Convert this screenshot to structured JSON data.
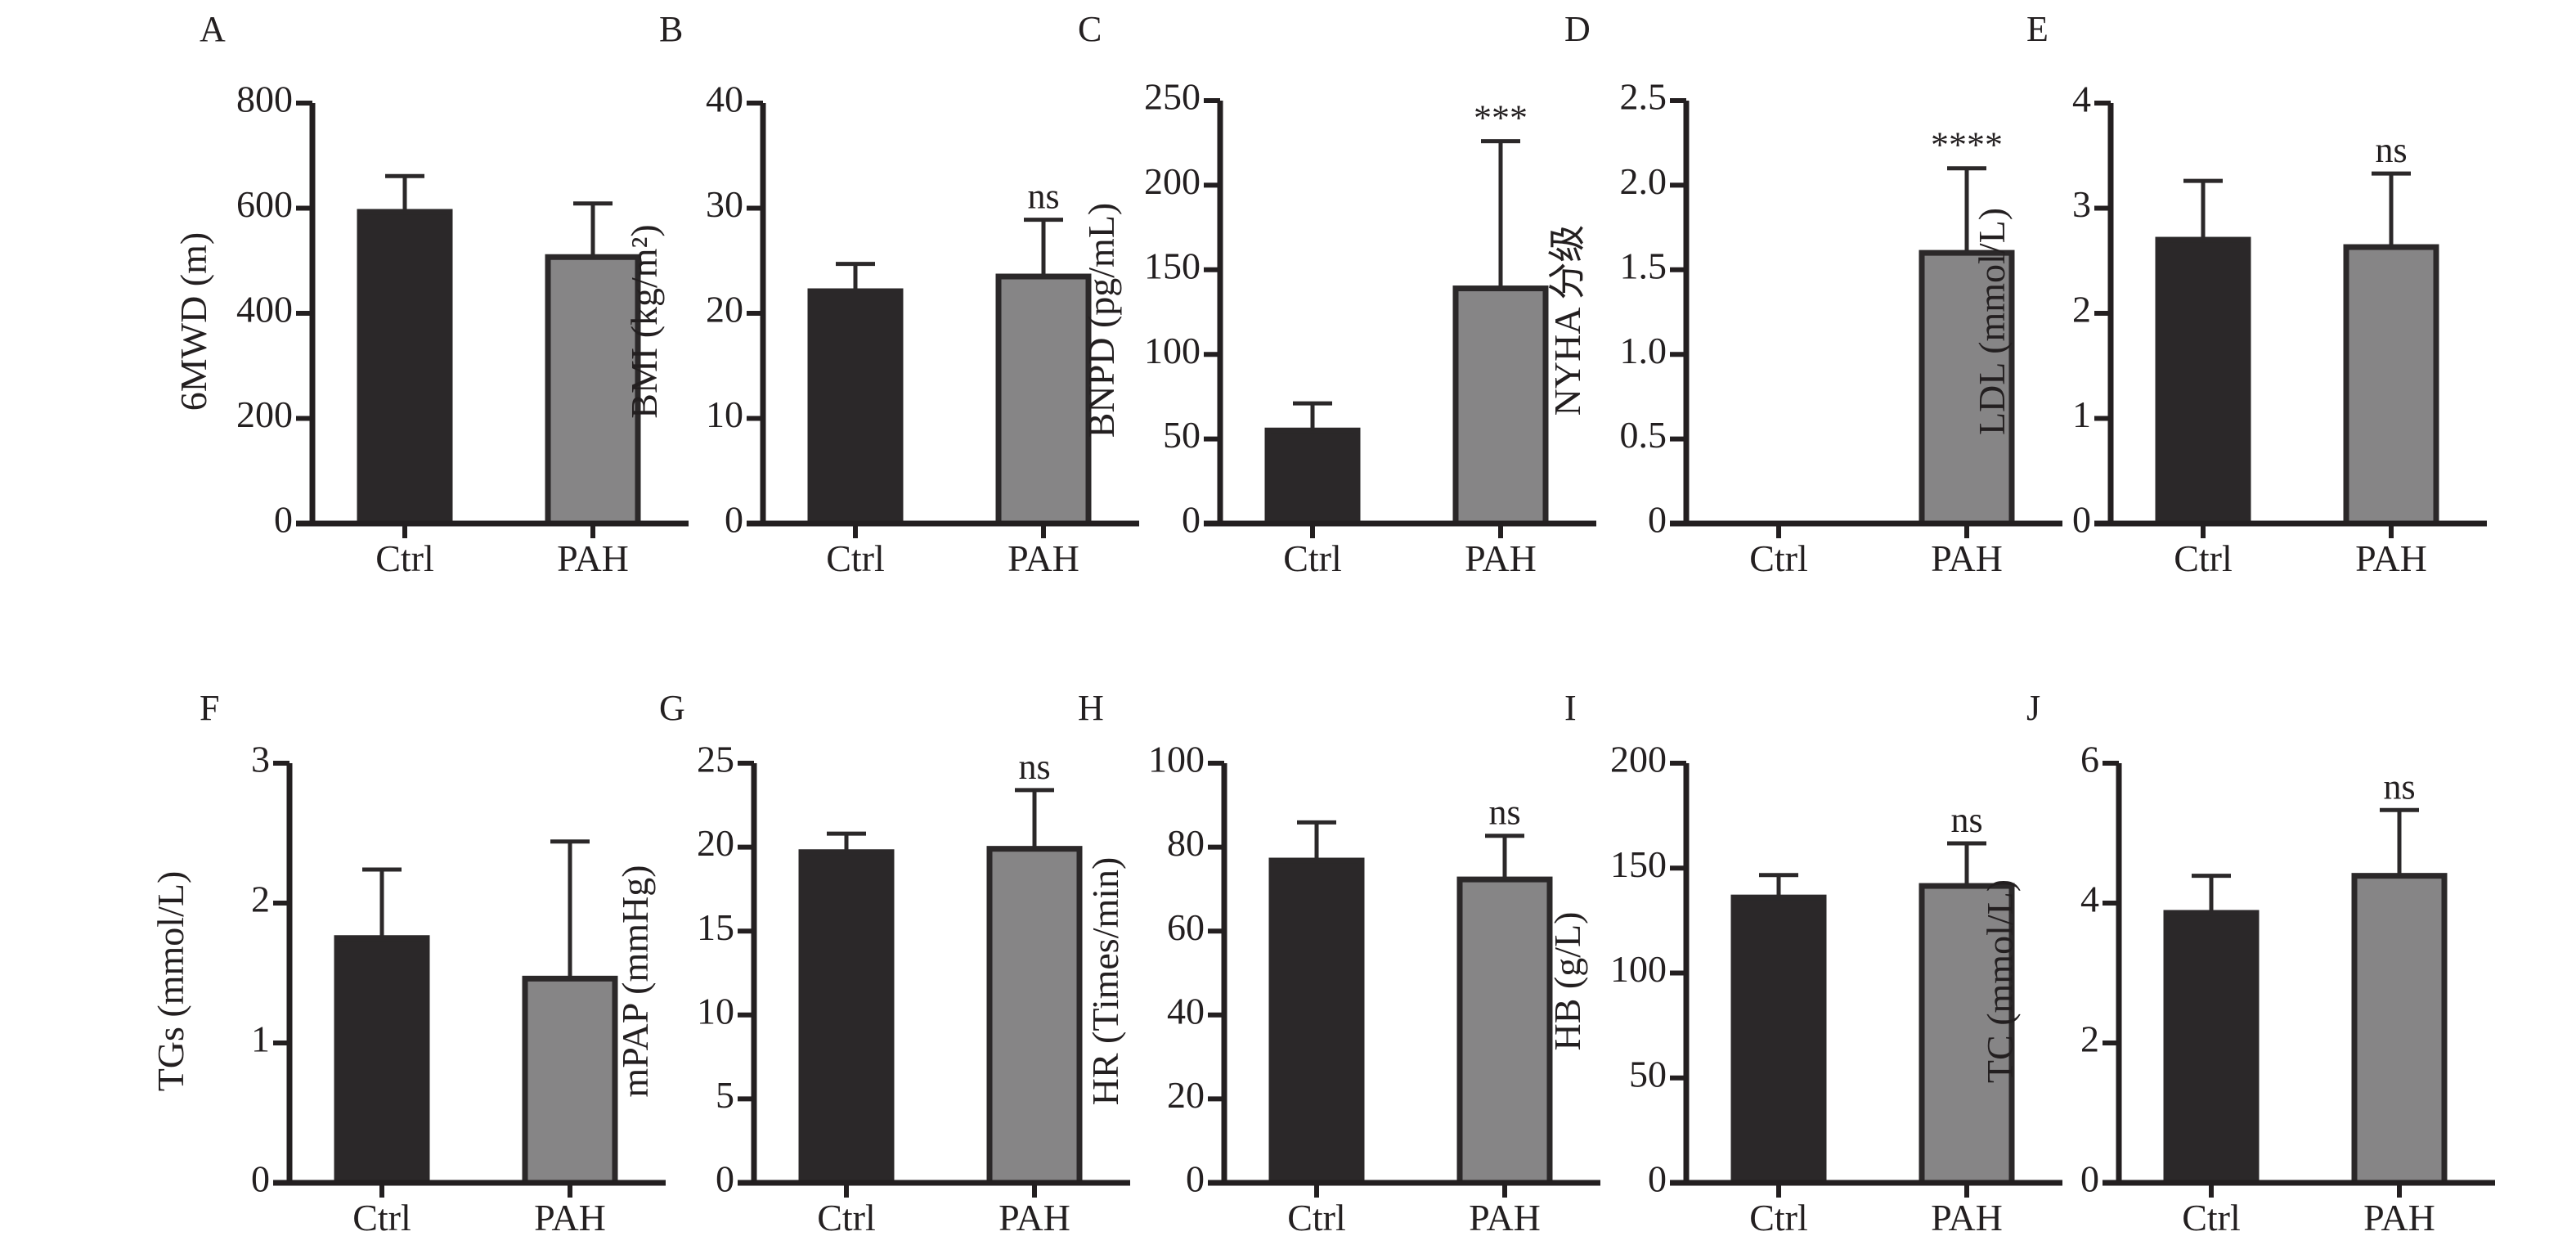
{
  "figure": {
    "colors": {
      "ctrl": "#2b2829",
      "pah": "#868586",
      "axis": "#231f20",
      "outline": "#2b2829"
    }
  },
  "chart_data": [
    {
      "panel": "A",
      "type": "bar",
      "title": "",
      "ylabel": "6MWD (m)",
      "xlabel": "",
      "categories": [
        "Ctrl",
        "PAH"
      ],
      "values": [
        593,
        507
      ],
      "error_upper": [
        661,
        609
      ],
      "ylim": [
        0,
        800
      ],
      "yticks": [
        "0",
        "200",
        "400",
        "600",
        "800"
      ],
      "annotations": [
        "",
        ""
      ]
    },
    {
      "panel": "B",
      "type": "bar",
      "title": "",
      "ylabel": "BMI (kg/m²)",
      "xlabel": "",
      "categories": [
        "Ctrl",
        "PAH"
      ],
      "values": [
        22.1,
        23.5
      ],
      "error_upper": [
        24.7,
        28.9
      ],
      "ylim": [
        0,
        40
      ],
      "yticks": [
        "0",
        "10",
        "20",
        "30",
        "40"
      ],
      "annotations": [
        "",
        "ns"
      ]
    },
    {
      "panel": "C",
      "type": "bar",
      "title": "",
      "ylabel": "BNPD (pg/mL)",
      "xlabel": "",
      "categories": [
        "Ctrl",
        "PAH"
      ],
      "values": [
        55,
        139
      ],
      "error_upper": [
        71,
        226
      ],
      "ylim": [
        0,
        250
      ],
      "yticks": [
        "0",
        "50",
        "100",
        "150",
        "200",
        "250"
      ],
      "annotations": [
        "",
        "***"
      ]
    },
    {
      "panel": "D",
      "type": "bar",
      "title": "",
      "ylabel": "NYHA 分级",
      "xlabel": "",
      "categories": [
        "Ctrl",
        "PAH"
      ],
      "values": [
        0,
        1.6
      ],
      "error_upper": [
        0,
        2.1
      ],
      "ylim": [
        0,
        2.5
      ],
      "yticks": [
        "0",
        "0.5",
        "1.0",
        "1.5",
        "2.0",
        "2.5"
      ],
      "annotations": [
        "",
        "****"
      ]
    },
    {
      "panel": "E",
      "type": "bar",
      "title": "",
      "ylabel": "LDL (mmol/L)",
      "xlabel": "",
      "categories": [
        "Ctrl",
        "PAH"
      ],
      "values": [
        2.7,
        2.63
      ],
      "error_upper": [
        3.26,
        3.33
      ],
      "ylim": [
        0,
        4
      ],
      "yticks": [
        "0",
        "1",
        "2",
        "3",
        "4"
      ],
      "annotations": [
        "",
        "ns"
      ]
    },
    {
      "panel": "F",
      "type": "bar",
      "title": "",
      "ylabel": "TGs (mmol/L)",
      "xlabel": "",
      "categories": [
        "Ctrl",
        "PAH"
      ],
      "values": [
        1.75,
        1.46
      ],
      "error_upper": [
        2.24,
        2.44
      ],
      "ylim": [
        0,
        3
      ],
      "yticks": [
        "0",
        "1",
        "2",
        "3"
      ],
      "annotations": [
        "",
        ""
      ]
    },
    {
      "panel": "G",
      "type": "bar",
      "title": "",
      "ylabel": "mPAP (mmHg)",
      "xlabel": "",
      "categories": [
        "Ctrl",
        "PAH"
      ],
      "values": [
        19.7,
        19.9
      ],
      "error_upper": [
        20.8,
        23.4
      ],
      "ylim": [
        0,
        25
      ],
      "yticks": [
        "0",
        "5",
        "10",
        "15",
        "20",
        "25"
      ],
      "annotations": [
        "",
        "ns"
      ]
    },
    {
      "panel": "H",
      "type": "bar",
      "title": "",
      "ylabel": "HR (Times/min)",
      "xlabel": "",
      "categories": [
        "Ctrl",
        "PAH"
      ],
      "values": [
        76.8,
        72.3
      ],
      "error_upper": [
        85.9,
        82.7
      ],
      "ylim": [
        0,
        100
      ],
      "yticks": [
        "0",
        "20",
        "40",
        "60",
        "80",
        "100"
      ],
      "annotations": [
        "",
        "ns"
      ]
    },
    {
      "panel": "I",
      "type": "bar",
      "title": "",
      "ylabel": "HB (g/L)",
      "xlabel": "",
      "categories": [
        "Ctrl",
        "PAH"
      ],
      "values": [
        136,
        141.5
      ],
      "error_upper": [
        146.7,
        161.8
      ],
      "ylim": [
        0,
        200
      ],
      "yticks": [
        "0",
        "50",
        "100",
        "150",
        "200"
      ],
      "annotations": [
        "",
        "ns"
      ]
    },
    {
      "panel": "J",
      "type": "bar",
      "title": "",
      "ylabel": "TC (mmol/L)",
      "xlabel": "",
      "categories": [
        "Ctrl",
        "PAH"
      ],
      "values": [
        3.86,
        4.39
      ],
      "error_upper": [
        4.39,
        5.33
      ],
      "ylim": [
        0,
        6
      ],
      "yticks": [
        "0",
        "2",
        "4",
        "6"
      ],
      "annotations": [
        "",
        "ns"
      ]
    }
  ]
}
